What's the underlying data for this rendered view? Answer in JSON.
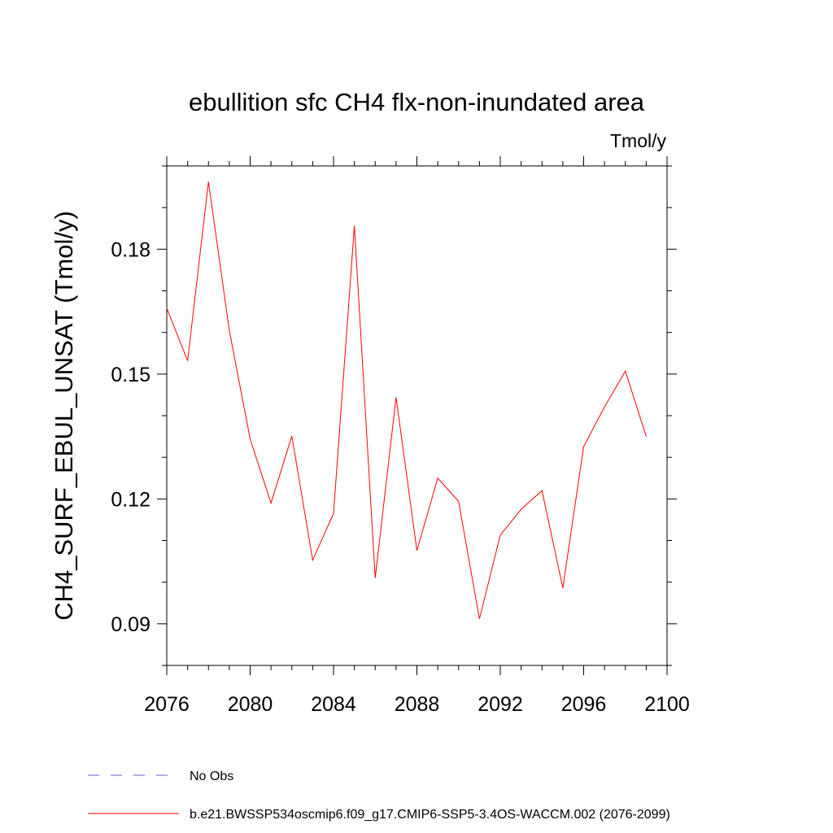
{
  "chart_data": {
    "type": "line",
    "title": "ebullition sfc CH4 flx-non-inundated area",
    "units": "Tmol/y",
    "ylabel": "CH4_SURF_EBUL_UNSAT  (Tmol/y)",
    "xlabel": "",
    "xlim": [
      2076,
      2100
    ],
    "ylim": [
      0.08,
      0.2
    ],
    "x_ticks": [
      2076,
      2080,
      2084,
      2088,
      2092,
      2096,
      2100
    ],
    "x_tick_labels": [
      "2076",
      "2080",
      "2084",
      "2088",
      "2092",
      "2096",
      "2100"
    ],
    "y_ticks": [
      0.09,
      0.12,
      0.15,
      0.18
    ],
    "y_tick_labels": [
      "0.09",
      "0.12",
      "0.15",
      "0.18"
    ],
    "x_minor_step": 1,
    "y_minor_step": 0.01,
    "grid": false,
    "legend_position": "bottom",
    "series": [
      {
        "name": "b.e21.BWSSP534oscmip6.f09_g17.CMIP6-SSP5-3.4OS-WACCM.002 (2076-2099)",
        "color": "#ff0000",
        "style": "solid",
        "x": [
          2076,
          2077,
          2078,
          2079,
          2080,
          2081,
          2082,
          2083,
          2084,
          2085,
          2086,
          2087,
          2088,
          2089,
          2090,
          2091,
          2092,
          2093,
          2094,
          2095,
          2096,
          2097,
          2098,
          2099
        ],
        "values": [
          0.1658,
          0.1532,
          0.1962,
          0.1605,
          0.1344,
          0.119,
          0.1351,
          0.1053,
          0.1165,
          0.1856,
          0.101,
          0.1444,
          0.1076,
          0.125,
          0.1194,
          0.0912,
          0.1113,
          0.1175,
          0.122,
          0.0986,
          0.1326,
          0.1421,
          0.1507,
          0.135
        ]
      }
    ],
    "legend": [
      {
        "label": "No Obs",
        "color": "#6a5acd",
        "style": "dashed"
      },
      {
        "label": "b.e21.BWSSP534oscmip6.f09_g17.CMIP6-SSP5-3.4OS-WACCM.002 (2076-2099)",
        "color": "#ff0000",
        "style": "solid"
      }
    ]
  }
}
